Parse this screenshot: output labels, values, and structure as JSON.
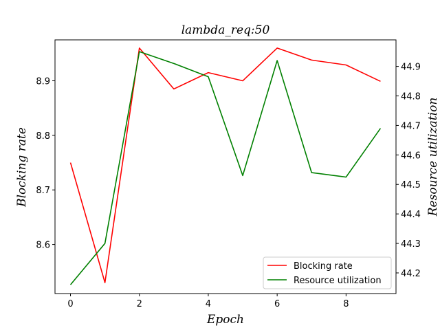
{
  "chart_data": {
    "type": "line",
    "title": "lambda_req:50",
    "xlabel": "Epoch",
    "ylabel_left": "Blocking rate",
    "ylabel_right": "Resource utilization",
    "x": [
      0,
      1,
      2,
      3,
      4,
      5,
      6,
      7,
      8,
      9
    ],
    "xlim": [
      -0.45,
      9.45
    ],
    "ylim_left": [
      8.51,
      8.975
    ],
    "ylim_right": [
      44.13,
      44.99
    ],
    "x_ticks": [
      0,
      2,
      4,
      6,
      8
    ],
    "y_ticks_left": [
      8.6,
      8.7,
      8.8,
      8.9
    ],
    "y_ticks_right": [
      44.2,
      44.3,
      44.4,
      44.5,
      44.6,
      44.7,
      44.8,
      44.9
    ],
    "series": [
      {
        "name": "Blocking rate",
        "axis": "left",
        "color": "#ff0000",
        "values": [
          8.75,
          8.53,
          8.96,
          8.885,
          8.915,
          8.9,
          8.96,
          8.938,
          8.929,
          8.899
        ]
      },
      {
        "name": "Resource utilization",
        "axis": "right",
        "color": "#008000",
        "values": [
          44.16,
          44.3,
          44.95,
          44.91,
          44.865,
          44.53,
          44.92,
          44.54,
          44.525,
          44.69
        ]
      }
    ],
    "grid": false,
    "legend_position": "lower-right"
  }
}
